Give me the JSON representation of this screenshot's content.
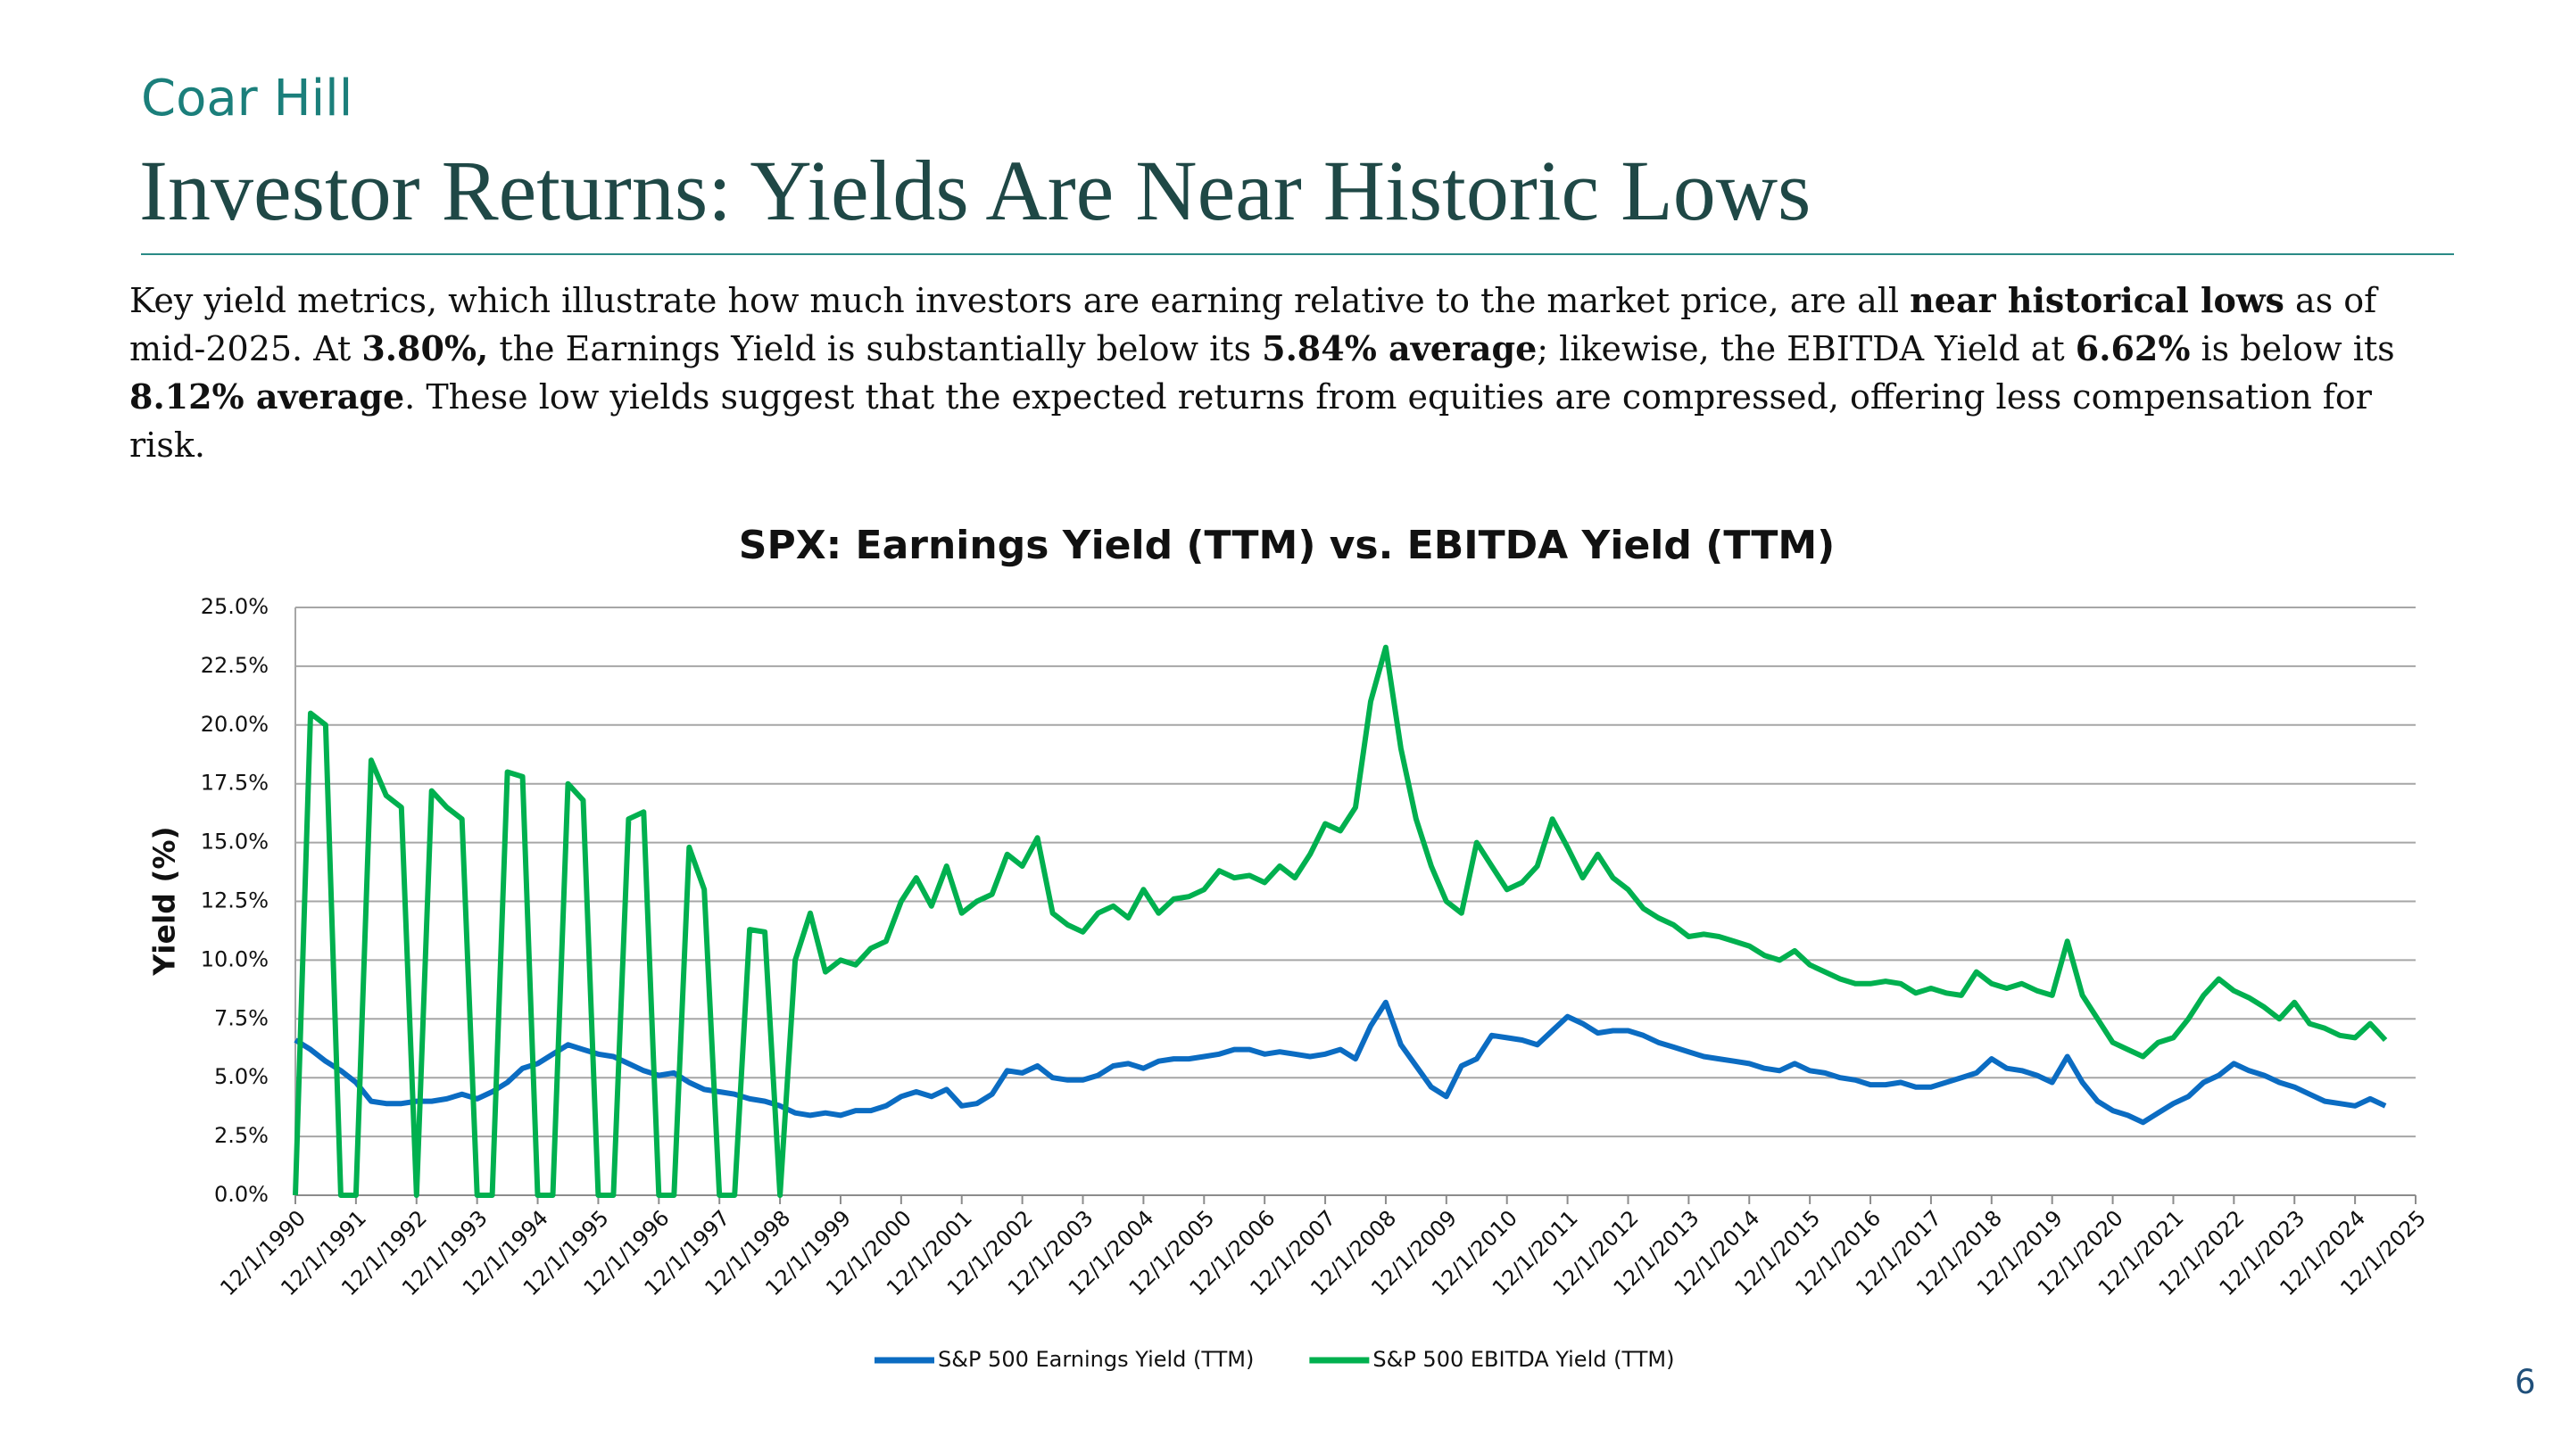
{
  "header": {
    "brand": "Coar Hill",
    "title": "Investor Returns: Yields Are Near Historic Lows"
  },
  "paragraph": [
    {
      "text": "Key yield metrics, which illustrate how much investors are earning relative to the market price, are all ",
      "bold": false
    },
    {
      "text": "near historical lows",
      "bold": true
    },
    {
      "text": " as of mid-2025. At ",
      "bold": false
    },
    {
      "text": "3.80%,",
      "bold": true
    },
    {
      "text": " the Earnings Yield is substantially below its ",
      "bold": false
    },
    {
      "text": "5.84% average",
      "bold": true
    },
    {
      "text": "; likewise, the EBITDA Yield at ",
      "bold": false
    },
    {
      "text": "6.62%",
      "bold": true
    },
    {
      "text": " is below its ",
      "bold": false
    },
    {
      "text": "8.12% average",
      "bold": true
    },
    {
      "text": ". These low yields suggest that the expected returns from equities are compressed, offering less compensation for risk.",
      "bold": false
    }
  ],
  "page_number": "6",
  "chart_data": {
    "type": "line",
    "title": "SPX: Earnings Yield (TTM) vs. EBITDA Yield (TTM)",
    "y_label": "Yield (%)",
    "categories": [
      "12/1/1990",
      null,
      null,
      null,
      "12/1/1991",
      null,
      null,
      null,
      "12/1/1992",
      null,
      null,
      null,
      "12/1/1993",
      null,
      null,
      null,
      "12/1/1994",
      null,
      null,
      null,
      "12/1/1995",
      null,
      null,
      null,
      "12/1/1996",
      null,
      null,
      null,
      "12/1/1997",
      null,
      null,
      null,
      "12/1/1998",
      null,
      null,
      null,
      "12/1/1999",
      null,
      null,
      null,
      "12/1/2000",
      null,
      null,
      null,
      "12/1/2001",
      null,
      null,
      null,
      "12/1/2002",
      null,
      null,
      null,
      "12/1/2003",
      null,
      null,
      null,
      "12/1/2004",
      null,
      null,
      null,
      "12/1/2005",
      null,
      null,
      null,
      "12/1/2006",
      null,
      null,
      null,
      "12/1/2007",
      null,
      null,
      null,
      "12/1/2008",
      null,
      null,
      null,
      "12/1/2009",
      null,
      null,
      null,
      "12/1/2010",
      null,
      null,
      null,
      "12/1/2011",
      null,
      null,
      null,
      "12/1/2012",
      null,
      null,
      null,
      "12/1/2013",
      null,
      null,
      null,
      "12/1/2014",
      null,
      null,
      null,
      "12/1/2015",
      null,
      null,
      null,
      "12/1/2016",
      null,
      null,
      null,
      "12/1/2017",
      null,
      null,
      null,
      "12/1/2018",
      null,
      null,
      null,
      "12/1/2019",
      null,
      null,
      null,
      "12/1/2020",
      null,
      null,
      null,
      "12/1/2021",
      null,
      null,
      null,
      "12/1/2022",
      null,
      null,
      null,
      "12/1/2023",
      null,
      null,
      null,
      "12/1/2024",
      null,
      null,
      null,
      "12/1/2025"
    ],
    "series": [
      {
        "name": "S&P 500 Earnings Yield (TTM)",
        "color": "#0b6cc2",
        "values": [
          6.6,
          6.2,
          5.7,
          5.3,
          4.8,
          4.0,
          3.9,
          3.9,
          4.0,
          4.0,
          4.1,
          4.3,
          4.1,
          4.4,
          4.8,
          5.4,
          5.6,
          6.0,
          6.4,
          6.2,
          6.0,
          5.9,
          5.6,
          5.3,
          5.1,
          5.2,
          4.8,
          4.5,
          4.4,
          4.3,
          4.1,
          4.0,
          3.8,
          3.5,
          3.4,
          3.5,
          3.4,
          3.6,
          3.6,
          3.8,
          4.2,
          4.4,
          4.2,
          4.5,
          3.8,
          3.9,
          4.3,
          5.3,
          5.2,
          5.5,
          5.0,
          4.9,
          4.9,
          5.1,
          5.5,
          5.6,
          5.4,
          5.7,
          5.8,
          5.8,
          5.9,
          6.0,
          6.2,
          6.2,
          6.0,
          6.1,
          6.0,
          5.9,
          6.0,
          6.2,
          5.8,
          7.2,
          8.2,
          6.4,
          5.5,
          4.6,
          4.2,
          5.5,
          5.8,
          6.8,
          6.7,
          6.6,
          6.4,
          7.0,
          7.6,
          7.3,
          6.9,
          7.0,
          7.0,
          6.8,
          6.5,
          6.3,
          6.1,
          5.9,
          5.8,
          5.7,
          5.6,
          5.4,
          5.3,
          5.6,
          5.3,
          5.2,
          5.0,
          4.9,
          4.7,
          4.7,
          4.8,
          4.6,
          4.6,
          4.8,
          5.0,
          5.2,
          5.8,
          5.4,
          5.3,
          5.1,
          4.8,
          5.9,
          4.8,
          4.0,
          3.6,
          3.4,
          3.1,
          3.5,
          3.9,
          4.2,
          4.8,
          5.1,
          5.6,
          5.3,
          5.1,
          4.8,
          4.6,
          4.3,
          4.0,
          3.9,
          3.8,
          4.1,
          3.8,
          null,
          null
        ]
      },
      {
        "name": "S&P 500 EBITDA Yield (TTM)",
        "color": "#00b04f",
        "values": [
          0,
          20.5,
          20.0,
          0,
          0,
          18.5,
          17.0,
          16.5,
          0,
          17.2,
          16.5,
          16.0,
          0,
          0,
          18.0,
          17.8,
          0,
          0,
          17.5,
          16.8,
          0,
          0,
          16.0,
          16.3,
          0,
          0,
          14.8,
          13.0,
          0,
          0,
          11.3,
          11.2,
          0,
          10.0,
          12.0,
          9.5,
          10.0,
          9.8,
          10.5,
          10.8,
          12.5,
          13.5,
          12.3,
          14.0,
          12.0,
          12.5,
          12.8,
          14.5,
          14.0,
          15.2,
          12.0,
          11.5,
          11.2,
          12.0,
          12.3,
          11.8,
          13.0,
          12.0,
          12.6,
          12.7,
          13.0,
          13.8,
          13.5,
          13.6,
          13.3,
          14.0,
          13.5,
          14.5,
          15.8,
          15.5,
          16.5,
          21.0,
          23.3,
          19.0,
          16.0,
          14.0,
          12.5,
          12.0,
          15.0,
          14.0,
          13.0,
          13.3,
          14.0,
          16.0,
          14.8,
          13.5,
          14.5,
          13.5,
          13.0,
          12.2,
          11.8,
          11.5,
          11.0,
          11.1,
          11.0,
          10.8,
          10.6,
          10.2,
          10.0,
          10.4,
          9.8,
          9.5,
          9.2,
          9.0,
          9.0,
          9.1,
          9.0,
          8.6,
          8.8,
          8.6,
          8.5,
          9.5,
          9.0,
          8.8,
          9.0,
          8.7,
          8.5,
          10.8,
          8.5,
          7.5,
          6.5,
          6.2,
          5.9,
          6.5,
          6.7,
          7.5,
          8.5,
          9.2,
          8.7,
          8.4,
          8.0,
          7.5,
          8.2,
          7.3,
          7.1,
          6.8,
          6.7,
          7.3,
          6.6,
          null,
          null
        ]
      }
    ],
    "ylim": [
      0,
      25
    ],
    "yticks": [
      {
        "value": 0,
        "label": "0.0%"
      },
      {
        "value": 2.5,
        "label": "2.5%"
      },
      {
        "value": 5,
        "label": "5.0%"
      },
      {
        "value": 7.5,
        "label": "7.5%"
      },
      {
        "value": 10,
        "label": "10.0%"
      },
      {
        "value": 12.5,
        "label": "12.5%"
      },
      {
        "value": 15,
        "label": "15.0%"
      },
      {
        "value": 17.5,
        "label": "17.5%"
      },
      {
        "value": 20,
        "label": "20.0%"
      },
      {
        "value": 22.5,
        "label": "22.5%"
      },
      {
        "value": 25,
        "label": "25.0%"
      }
    ],
    "grid": true,
    "legend": "bottom"
  }
}
